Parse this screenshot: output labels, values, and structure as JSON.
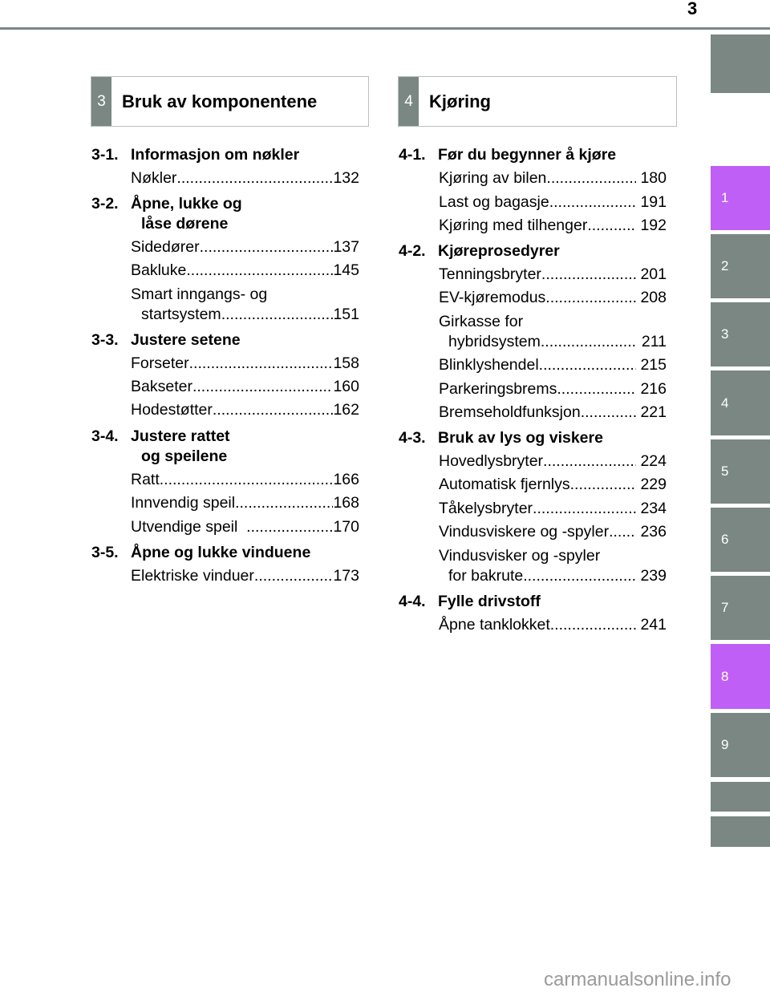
{
  "page_number": "3",
  "side_tabs": [
    {
      "label": ""
    },
    {
      "label": "1"
    },
    {
      "label": "2"
    },
    {
      "label": "3"
    },
    {
      "label": "4"
    },
    {
      "label": "5"
    },
    {
      "label": "6"
    },
    {
      "label": "7"
    },
    {
      "label": "8"
    },
    {
      "label": "9"
    },
    {
      "label": ""
    },
    {
      "label": ""
    }
  ],
  "highlight_color": "#bf5ff5",
  "tab_color": "#7a8783",
  "left": {
    "num": "3",
    "title": "Bruk av komponentene",
    "s1": {
      "num": "3-1.",
      "title": "Informasjon om nøkler",
      "e": [
        {
          "l": "Nøkler ",
          "p": "132"
        }
      ]
    },
    "s2": {
      "num": "3-2.",
      "title": "Åpne, lukke og",
      "title2": "låse dørene",
      "e": [
        {
          "l": "Sidedører ",
          "p": "137"
        },
        {
          "l": "Bakluke ",
          "p": "145"
        },
        {
          "l": "Smart inngangs- og",
          "l2": "startsystem ",
          "p": "151"
        }
      ]
    },
    "s3": {
      "num": "3-3.",
      "title": "Justere setene",
      "e": [
        {
          "l": "Forseter ",
          "p": "158"
        },
        {
          "l": "Bakseter",
          "p": "160"
        },
        {
          "l": "Hodestøtter ",
          "p": "162"
        }
      ]
    },
    "s4": {
      "num": "3-4.",
      "title": "Justere rattet",
      "title2": "og speilene",
      "e": [
        {
          "l": "Ratt ",
          "p": "166"
        },
        {
          "l": "Innvendig speil ",
          "p": "168"
        },
        {
          "l": "Utvendige speil  ",
          "p": "170"
        }
      ]
    },
    "s5": {
      "num": "3-5.",
      "title": "Åpne og lukke vinduene",
      "e": [
        {
          "l": "Elektriske vinduer ",
          "p": "173"
        }
      ]
    }
  },
  "right": {
    "num": "4",
    "title": "Kjøring",
    "s1": {
      "num": "4-1.",
      "title": "Før du begynner å kjøre",
      "e": [
        {
          "l": "Kjøring av bilen ",
          "p": " 180"
        },
        {
          "l": "Last og bagasje",
          "p": " 191"
        },
        {
          "l": "Kjøring med tilhenger ",
          "p": " 192"
        }
      ]
    },
    "s2": {
      "num": "4-2.",
      "title": "Kjøreprosedyrer",
      "e": [
        {
          "l": "Tenningsbryter ",
          "p": " 201"
        },
        {
          "l": "EV-kjøremodus ",
          "p": " 208"
        },
        {
          "l": "Girkasse for",
          "l2": "hybridsystem",
          "p": " 211"
        },
        {
          "l": "Blinklyshendel ",
          "p": " 215"
        },
        {
          "l": "Parkeringsbrems ",
          "p": " 216"
        },
        {
          "l": "Bremseholdfunksjon",
          "p": " 221"
        }
      ]
    },
    "s3": {
      "num": "4-3.",
      "title": "Bruk av lys og viskere",
      "e": [
        {
          "l": "Hovedlysbryter ",
          "p": " 224"
        },
        {
          "l": "Automatisk fjernlys ",
          "p": " 229"
        },
        {
          "l": "Tåkelysbryter",
          "p": " 234"
        },
        {
          "l": "Vindusviskere og -spyler ",
          "p": " 236"
        },
        {
          "l": "Vindusvisker og -spyler",
          "l2": "for bakrute ",
          "p": " 239"
        }
      ]
    },
    "s4": {
      "num": "4-4.",
      "title": "Fylle drivstoff",
      "e": [
        {
          "l": "Åpne tanklokket",
          "p": " 241"
        }
      ]
    }
  },
  "watermark": "carmanualsonline.info"
}
